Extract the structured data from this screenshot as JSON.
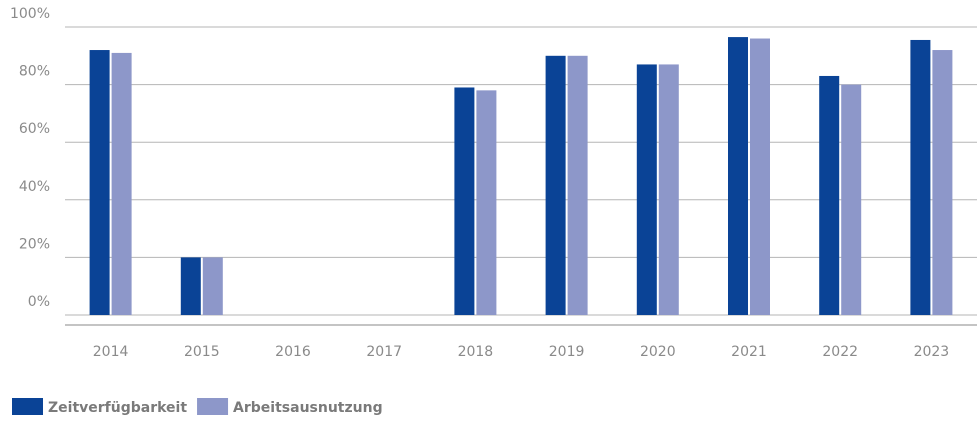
{
  "chart_data": {
    "type": "bar",
    "categories": [
      "2014",
      "2015",
      "2016",
      "2017",
      "2018",
      "2019",
      "2020",
      "2021",
      "2022",
      "2023"
    ],
    "series": [
      {
        "name": "Zeitverfügbarkeit",
        "color": "#0a4396",
        "values": [
          92,
          20,
          null,
          null,
          79,
          90,
          87,
          96.5,
          83,
          95.5
        ]
      },
      {
        "name": "Arbeitsausnutzung",
        "color": "#8d97c9",
        "values": [
          91,
          20,
          null,
          null,
          78,
          90,
          87,
          96,
          80,
          92
        ]
      }
    ],
    "ylim": [
      0,
      100
    ],
    "yticks": [
      {
        "value": 0,
        "label": "0%"
      },
      {
        "value": 20,
        "label": "20%"
      },
      {
        "value": 40,
        "label": "40%"
      },
      {
        "value": 60,
        "label": "60%"
      },
      {
        "value": 80,
        "label": "80%"
      },
      {
        "value": 100,
        "label": "100%"
      }
    ],
    "grid": true
  }
}
